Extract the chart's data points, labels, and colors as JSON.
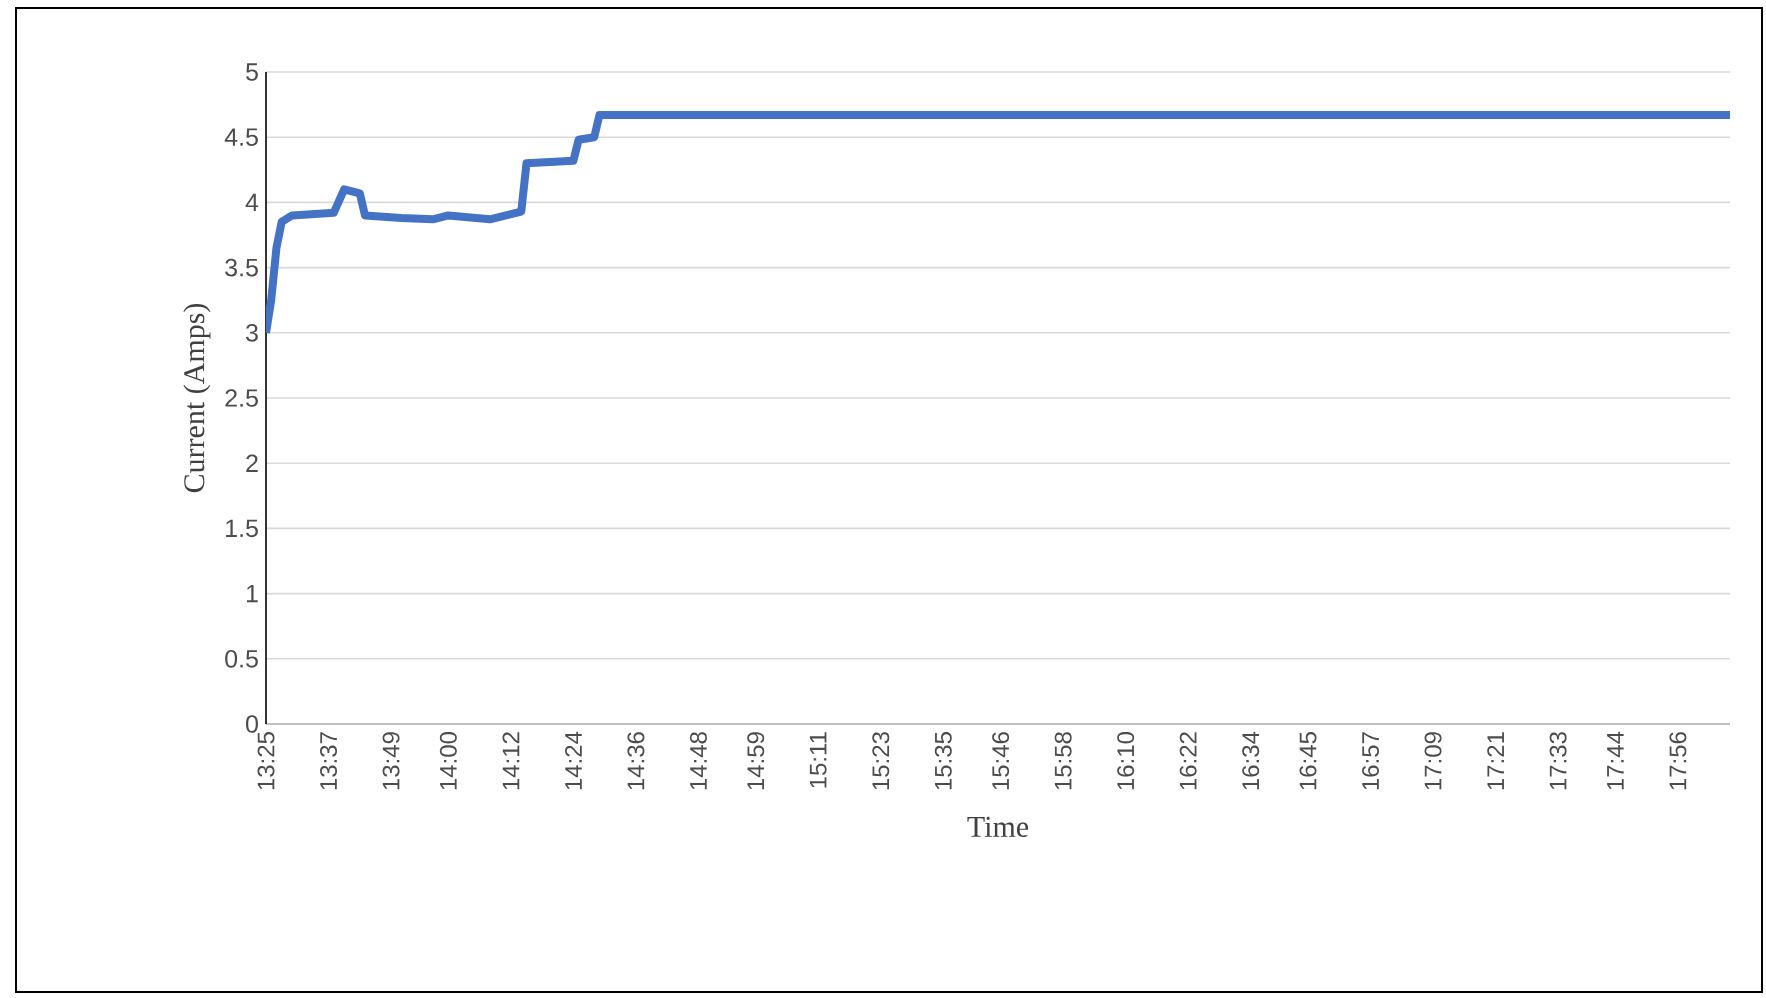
{
  "chart_data": {
    "type": "line",
    "xlabel": "Time",
    "ylabel": "Current (Amps)",
    "x": [
      13.4167,
      13.4333,
      13.45,
      13.4667,
      13.5,
      13.6333,
      13.6667,
      13.7167,
      13.7333,
      13.85,
      13.95,
      14.0,
      14.1333,
      14.2333,
      14.25,
      14.4,
      14.4167,
      14.4667,
      14.4833,
      18.1
    ],
    "values": [
      3.0,
      3.25,
      3.65,
      3.85,
      3.9,
      3.92,
      4.1,
      4.07,
      3.9,
      3.88,
      3.87,
      3.9,
      3.87,
      3.93,
      4.3,
      4.32,
      4.48,
      4.5,
      4.67,
      4.67
    ],
    "color": "#4472c4",
    "marker": "none",
    "line_style": "solid",
    "grid": "y",
    "xlim": [
      13.4167,
      18.1
    ],
    "ylim": [
      0,
      5
    ],
    "yticks": [
      0,
      0.5,
      1,
      1.5,
      2,
      2.5,
      3,
      3.5,
      4,
      4.5,
      5
    ],
    "xticks": [
      {
        "value": 13.4167,
        "label": "13:25"
      },
      {
        "value": 13.6167,
        "label": "13:37"
      },
      {
        "value": 13.8167,
        "label": "13:49"
      },
      {
        "value": 14.0,
        "label": "14:00"
      },
      {
        "value": 14.2,
        "label": "14:12"
      },
      {
        "value": 14.4,
        "label": "14:24"
      },
      {
        "value": 14.6,
        "label": "14:36"
      },
      {
        "value": 14.8,
        "label": "14:48"
      },
      {
        "value": 14.9833,
        "label": "14:59"
      },
      {
        "value": 15.1833,
        "label": "15:11"
      },
      {
        "value": 15.3833,
        "label": "15:23"
      },
      {
        "value": 15.5833,
        "label": "15:35"
      },
      {
        "value": 15.7667,
        "label": "15:46"
      },
      {
        "value": 15.9667,
        "label": "15:58"
      },
      {
        "value": 16.1667,
        "label": "16:10"
      },
      {
        "value": 16.3667,
        "label": "16:22"
      },
      {
        "value": 16.5667,
        "label": "16:34"
      },
      {
        "value": 16.75,
        "label": "16:45"
      },
      {
        "value": 16.95,
        "label": "16:57"
      },
      {
        "value": 17.15,
        "label": "17:09"
      },
      {
        "value": 17.35,
        "label": "17:21"
      },
      {
        "value": 17.55,
        "label": "17:33"
      },
      {
        "value": 17.7333,
        "label": "17:44"
      },
      {
        "value": 17.9333,
        "label": "17:56"
      }
    ]
  }
}
